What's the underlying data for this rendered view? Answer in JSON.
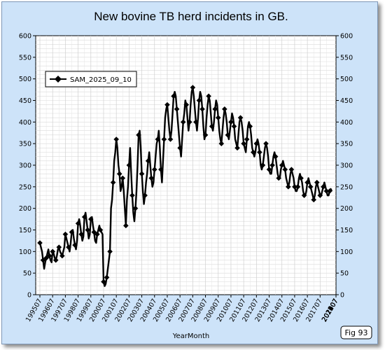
{
  "figure_label": "Fig 93",
  "chart_data": {
    "type": "line",
    "title": "New bovine TB herd incidents in GB.",
    "xlabel": "YearMonth",
    "ylabel": "",
    "ylim": [
      0,
      600
    ],
    "y_ticks": [
      0,
      50,
      100,
      150,
      200,
      250,
      300,
      350,
      400,
      450,
      500,
      550,
      600
    ],
    "x_tick_labels": [
      "199507",
      "199607",
      "199707",
      "199807",
      "199907",
      "200007",
      "200107",
      "200207",
      "200307",
      "200407",
      "200507",
      "200607",
      "200707",
      "200807",
      "200907",
      "201007",
      "201107",
      "201207",
      "201307",
      "201407",
      "201507",
      "201607",
      "201707",
      "201807",
      "201907",
      "202007",
      "202107",
      "202207",
      "202307",
      "202407",
      "202507"
    ],
    "grid": true,
    "legend_position": "top-left",
    "series_color": "#000000",
    "series": [
      {
        "name": "SAM_2025_09_10",
        "x_start": "199507",
        "frequency": "monthly",
        "values": [
          120,
          110,
          100,
          80,
          60,
          75,
          85,
          95,
          105,
          90,
          80,
          75,
          100,
          95,
          85,
          80,
          90,
          105,
          110,
          100,
          95,
          90,
          100,
          110,
          140,
          130,
          120,
          110,
          100,
          120,
          145,
          150,
          130,
          115,
          105,
          125,
          165,
          175,
          160,
          140,
          125,
          135,
          180,
          190,
          170,
          150,
          130,
          140,
          175,
          180,
          160,
          145,
          125,
          120,
          140,
          150,
          160,
          150,
          145,
          140,
          30,
          20,
          25,
          40,
          60,
          80,
          100,
          200,
          220,
          260,
          310,
          330,
          360,
          340,
          300,
          280,
          240,
          250,
          270,
          240,
          200,
          160,
          220,
          250,
          300,
          340,
          280,
          230,
          190,
          170,
          200,
          240,
          300,
          370,
          380,
          340,
          280,
          240,
          210,
          230,
          260,
          280,
          310,
          330,
          300,
          270,
          250,
          260,
          290,
          320,
          350,
          360,
          380,
          340,
          290,
          260,
          310,
          360,
          410,
          430,
          440,
          410,
          380,
          360,
          380,
          420,
          460,
          470,
          460,
          430,
          400,
          370,
          340,
          320,
          360,
          400,
          420,
          450,
          440,
          410,
          380,
          400,
          440,
          470,
          480,
          460,
          430,
          400,
          380,
          410,
          450,
          470,
          460,
          430,
          390,
          360,
          370,
          410,
          440,
          460,
          450,
          420,
          390,
          380,
          400,
          430,
          450,
          440,
          410,
          380,
          360,
          350,
          380,
          410,
          430,
          420,
          400,
          370,
          360,
          380,
          400,
          420,
          410,
          390,
          360,
          350,
          340,
          370,
          400,
          410,
          400,
          380,
          350,
          340,
          330,
          360,
          390,
          400,
          390,
          370,
          340,
          330,
          320,
          330,
          350,
          360,
          350,
          330,
          300,
          290,
          300,
          320,
          340,
          350,
          340,
          320,
          290,
          280,
          280,
          300,
          320,
          330,
          320,
          300,
          280,
          270,
          270,
          290,
          300,
          310,
          300,
          290,
          270,
          260,
          250,
          260,
          280,
          290,
          280,
          270,
          250,
          240,
          240,
          250,
          270,
          280,
          270,
          260,
          240,
          230,
          230,
          240,
          260,
          270,
          260,
          250,
          240,
          230,
          220,
          230,
          250,
          260,
          250,
          240,
          230,
          230,
          240,
          250,
          260,
          250,
          240,
          230,
          230,
          240,
          245,
          240
        ]
      }
    ]
  }
}
